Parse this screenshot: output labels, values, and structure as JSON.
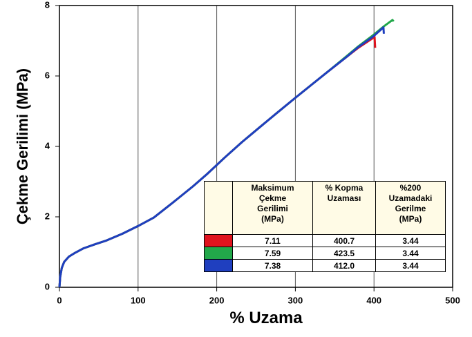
{
  "chart_data": {
    "type": "line",
    "xlabel": "% Uzama",
    "ylabel": "Çekme Gerilimi (MPa)",
    "xlim": [
      0,
      500
    ],
    "xticks": [
      0,
      100,
      200,
      300,
      400,
      500
    ],
    "ylim": [
      0,
      8
    ],
    "yticks": [
      0,
      2,
      4,
      6,
      8
    ],
    "grid": "x",
    "series": [
      {
        "color": "#e0141e",
        "x": [
          0,
          1,
          3,
          6,
          12,
          20,
          30,
          45,
          60,
          80,
          100,
          120,
          144,
          170,
          188,
          210,
          232,
          255,
          276,
          300,
          320,
          340,
          364,
          380,
          399,
          400.7,
          401.5
        ],
        "values": [
          0,
          0.3,
          0.55,
          0.72,
          0.87,
          0.98,
          1.1,
          1.22,
          1.33,
          1.52,
          1.74,
          1.98,
          2.4,
          2.87,
          3.22,
          3.68,
          4.12,
          4.55,
          4.94,
          5.38,
          5.74,
          6.1,
          6.52,
          6.8,
          7.08,
          7.11,
          6.8
        ]
      },
      {
        "color": "#22a84a",
        "x": [
          0,
          1,
          3,
          6,
          12,
          20,
          30,
          45,
          60,
          80,
          100,
          120,
          144,
          170,
          188,
          210,
          232,
          255,
          276,
          300,
          320,
          340,
          364,
          380,
          399,
          412,
          423.5,
          425
        ],
        "values": [
          0,
          0.3,
          0.55,
          0.72,
          0.87,
          0.98,
          1.1,
          1.22,
          1.33,
          1.52,
          1.74,
          1.98,
          2.4,
          2.87,
          3.22,
          3.68,
          4.12,
          4.55,
          4.94,
          5.38,
          5.74,
          6.1,
          6.54,
          6.84,
          7.16,
          7.4,
          7.59,
          7.55
        ]
      },
      {
        "color": "#1f3fbf",
        "x": [
          0,
          1,
          3,
          6,
          12,
          20,
          30,
          45,
          60,
          80,
          100,
          120,
          144,
          170,
          188,
          210,
          232,
          255,
          276,
          300,
          320,
          340,
          364,
          380,
          399,
          412,
          412.5
        ],
        "values": [
          0,
          0.3,
          0.55,
          0.72,
          0.87,
          0.98,
          1.1,
          1.22,
          1.33,
          1.52,
          1.74,
          1.98,
          2.4,
          2.87,
          3.22,
          3.68,
          4.12,
          4.55,
          4.94,
          5.38,
          5.74,
          6.1,
          6.52,
          6.82,
          7.12,
          7.38,
          7.2
        ]
      }
    ],
    "table": {
      "columns": [
        "Maksimum\nÇekme\nGerilimi\n(MPa)",
        "% Kopma\nUzaması",
        "%200\nUzamadaki\nGerilme\n(MPa)"
      ],
      "rows": [
        [
          "7.11",
          "400.7",
          "3.44"
        ],
        [
          "7.59",
          "423.5",
          "3.44"
        ],
        [
          "7.38",
          "412.0",
          "3.44"
        ]
      ]
    }
  }
}
